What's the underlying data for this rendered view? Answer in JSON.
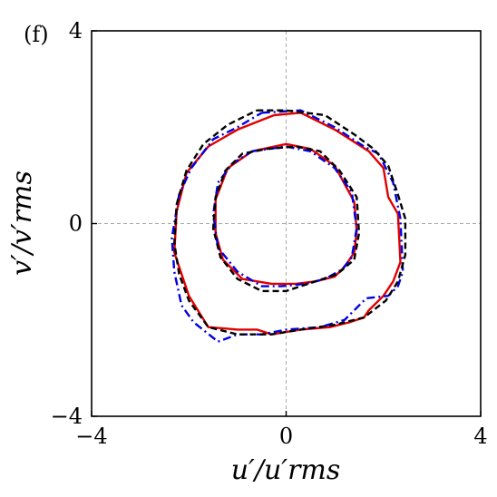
{
  "panel_label": "(f)",
  "chart_data": {
    "type": "line",
    "title": "",
    "xlabel": "u′/u′rms",
    "ylabel": "v′/v′rms",
    "xlim": [
      -4,
      4
    ],
    "ylim": [
      -4,
      4
    ],
    "xticks": [
      "−4",
      "0",
      "4"
    ],
    "yticks": [
      "−4",
      "0",
      "4"
    ],
    "grid": false,
    "reference_lines": {
      "x": 0,
      "y": 0,
      "style": "dashed",
      "color": "#aaaaaa"
    },
    "series": [
      {
        "color": "#e00000",
        "dash": "solid",
        "contours": [
          {
            "x": [
              -0.25,
              0.3,
              1.0,
              1.7,
              2.0,
              2.1,
              2.3,
              2.35,
              2.2,
              2.0,
              1.7,
              1.6,
              1.3,
              0.9,
              0.3,
              -0.3,
              -0.6,
              -1.0,
              -1.6,
              -2.0,
              -2.3,
              -2.25,
              -2.05,
              -1.6,
              -1.0,
              -0.25
            ],
            "y": [
              2.25,
              2.3,
              1.95,
              1.5,
              1.15,
              0.55,
              0.2,
              -0.8,
              -1.2,
              -1.5,
              -1.8,
              -1.95,
              -2.05,
              -2.15,
              -2.2,
              -2.3,
              -2.2,
              -2.2,
              -2.15,
              -1.5,
              -0.6,
              0.25,
              1.05,
              1.6,
              1.95,
              2.25
            ]
          },
          {
            "x": [
              -0.7,
              0.0,
              0.5,
              1.0,
              1.4,
              1.45,
              1.4,
              1.2,
              1.0,
              0.6,
              0.2,
              -0.3,
              -0.9,
              -1.3,
              -1.45,
              -1.45,
              -1.2,
              -0.7
            ],
            "y": [
              1.5,
              1.65,
              1.55,
              1.2,
              0.45,
              -0.15,
              -0.6,
              -0.9,
              -1.1,
              -1.2,
              -1.25,
              -1.25,
              -1.15,
              -0.75,
              -0.2,
              0.5,
              1.15,
              1.5
            ]
          }
        ]
      },
      {
        "color": "#0000e0",
        "dash": "dashdot",
        "contours": [
          {
            "x": [
              -0.5,
              0.3,
              1.0,
              1.6,
              1.9,
              2.2,
              2.35,
              2.4,
              2.3,
              2.1,
              1.65,
              1.5,
              1.2,
              0.7,
              0.0,
              -0.5,
              -1.0,
              -1.4,
              -1.9,
              -2.15,
              -2.3,
              -2.35,
              -2.2,
              -1.95,
              -1.5,
              -1.0,
              -0.5
            ],
            "y": [
              2.3,
              2.35,
              2.0,
              1.6,
              1.45,
              0.85,
              0.1,
              -1.0,
              -1.3,
              -1.5,
              -1.55,
              -1.7,
              -2.0,
              -2.15,
              -2.2,
              -2.3,
              -2.3,
              -2.45,
              -2.05,
              -1.7,
              -1.0,
              -0.3,
              0.6,
              1.15,
              1.75,
              2.0,
              2.3
            ]
          },
          {
            "x": [
              -0.7,
              0.0,
              0.5,
              1.0,
              1.35,
              1.45,
              1.35,
              1.15,
              0.8,
              0.4,
              -0.1,
              -0.5,
              -1.0,
              -1.4,
              -1.5,
              -1.4,
              -1.1,
              -0.7
            ],
            "y": [
              1.5,
              1.6,
              1.5,
              1.15,
              0.65,
              -0.1,
              -0.7,
              -0.95,
              -1.15,
              -1.25,
              -1.3,
              -1.3,
              -1.0,
              -0.5,
              0.2,
              0.85,
              1.25,
              1.5
            ]
          }
        ]
      },
      {
        "color": "#000000",
        "dash": "dashed",
        "contours": [
          {
            "x": [
              -0.6,
              0.0,
              0.8,
              1.4,
              1.8,
              2.1,
              2.3,
              2.45,
              2.45,
              2.3,
              2.05,
              1.6,
              1.0,
              0.3,
              -0.3,
              -1.0,
              -1.6,
              -2.0,
              -2.2,
              -2.3,
              -2.25,
              -2.05,
              -1.7,
              -1.2,
              -0.6
            ],
            "y": [
              2.35,
              2.35,
              2.25,
              1.85,
              1.55,
              1.2,
              0.6,
              0.1,
              -0.65,
              -1.2,
              -1.6,
              -1.95,
              -2.1,
              -2.2,
              -2.3,
              -2.3,
              -2.15,
              -1.6,
              -1.05,
              -0.4,
              0.4,
              1.1,
              1.65,
              2.05,
              2.35
            ]
          },
          {
            "x": [
              -0.4,
              0.2,
              0.7,
              1.1,
              1.45,
              1.5,
              1.4,
              1.05,
              0.6,
              0.0,
              -0.5,
              -1.0,
              -1.35,
              -1.5,
              -1.45,
              -1.25,
              -0.9,
              -0.4
            ],
            "y": [
              1.55,
              1.6,
              1.5,
              1.1,
              0.55,
              -0.2,
              -0.75,
              -1.05,
              -1.2,
              -1.4,
              -1.4,
              -1.15,
              -0.7,
              -0.1,
              0.55,
              1.1,
              1.45,
              1.55
            ]
          }
        ]
      }
    ]
  }
}
